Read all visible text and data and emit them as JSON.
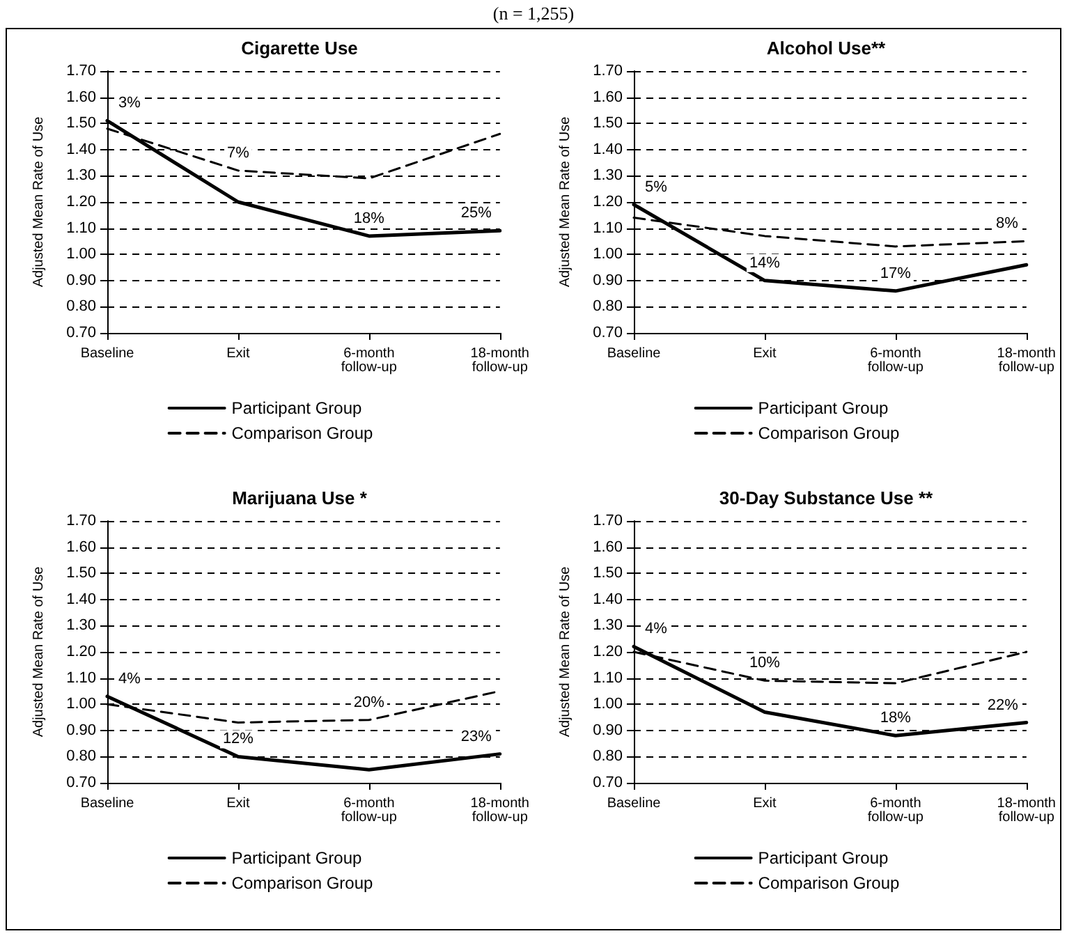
{
  "chart_data": [
    {
      "type": "line",
      "title": "Cigarette Use",
      "ylabel": "Adjusted Mean Rate of Use",
      "categories": [
        "Baseline",
        "Exit",
        "6-month\nfollow-up",
        "18-month\nfollow-up"
      ],
      "series": [
        {
          "name": "Participant Group",
          "color": "#000000",
          "line_style": "solid",
          "values": [
            1.51,
            1.2,
            1.07,
            1.09
          ]
        },
        {
          "name": "Comparison Group",
          "color": "#000000",
          "line_style": "dashed",
          "values": [
            1.48,
            1.32,
            1.29,
            1.46
          ]
        }
      ],
      "ylim": [
        0.7,
        1.7
      ],
      "yticks": [
        {
          "value": 0.7,
          "label": "0.70"
        },
        {
          "value": 0.8,
          "label": "0.80"
        },
        {
          "value": 0.9,
          "label": "0.90"
        },
        {
          "value": 1.0,
          "label": "1.00"
        },
        {
          "value": 1.1,
          "label": "1.10"
        },
        {
          "value": 1.2,
          "label": "1.20"
        },
        {
          "value": 1.3,
          "label": "1.30"
        },
        {
          "value": 1.4,
          "label": "1.40"
        },
        {
          "value": 1.5,
          "label": "1.50"
        },
        {
          "value": 1.6,
          "label": "1.60"
        },
        {
          "value": 1.7,
          "label": "1.70"
        }
      ],
      "grid": "y",
      "legend": "bottom",
      "marker": "none",
      "annotations": [
        "(n = 1,255)",
        {
          "text": "3%",
          "x": "Baseline",
          "y": 1.51
        },
        {
          "text": "7%",
          "x": "Exit",
          "y": 1.32
        },
        {
          "text": "18%",
          "x": "6-month\nfollow-up",
          "y": 1.07
        },
        {
          "text": "25%",
          "x": "18-month\nfollow-up",
          "y": 1.09
        }
      ]
    },
    {
      "type": "line",
      "title": "Alcohol Use**",
      "ylabel": "Adjusted Mean Rate of Use",
      "categories": [
        "Baseline",
        "Exit",
        "6-month\nfollow-up",
        "18-month\nfollow-up"
      ],
      "series": [
        {
          "name": "Participant Group",
          "color": "#000000",
          "line_style": "solid",
          "values": [
            1.19,
            0.9,
            0.86,
            0.96
          ]
        },
        {
          "name": "Comparison Group",
          "color": "#000000",
          "line_style": "dashed",
          "values": [
            1.14,
            1.07,
            1.03,
            1.05
          ]
        }
      ],
      "ylim": [
        0.7,
        1.7
      ],
      "yticks": [
        {
          "value": 0.7,
          "label": "0.70"
        },
        {
          "value": 0.8,
          "label": "0.80"
        },
        {
          "value": 0.9,
          "label": "0.90"
        },
        {
          "value": 1.0,
          "label": "1.00"
        },
        {
          "value": 1.1,
          "label": "1.10"
        },
        {
          "value": 1.2,
          "label": "1.20"
        },
        {
          "value": 1.3,
          "label": "1.30"
        },
        {
          "value": 1.4,
          "label": "1.40"
        },
        {
          "value": 1.5,
          "label": "1.50"
        },
        {
          "value": 1.6,
          "label": "1.60"
        },
        {
          "value": 1.7,
          "label": "1.70"
        }
      ],
      "grid": "y",
      "legend": "bottom",
      "marker": "none",
      "annotations": [
        {
          "text": "5%",
          "x": "Baseline",
          "y": 1.19
        },
        {
          "text": "14%",
          "x": "Exit",
          "y": 0.9
        },
        {
          "text": "17%",
          "x": "6-month\nfollow-up",
          "y": 0.86
        },
        {
          "text": "8%",
          "x": "18-month\nfollow-up",
          "y": 1.05
        }
      ]
    },
    {
      "type": "line",
      "title": "Marijuana Use *",
      "ylabel": "Adjusted Mean Rate of Use",
      "categories": [
        "Baseline",
        "Exit",
        "6-month\nfollow-up",
        "18-month\nfollow-up"
      ],
      "series": [
        {
          "name": "Participant Group",
          "color": "#000000",
          "line_style": "solid",
          "values": [
            1.03,
            0.8,
            0.75,
            0.81
          ]
        },
        {
          "name": "Comparison Group",
          "color": "#000000",
          "line_style": "dashed",
          "values": [
            1.0,
            0.93,
            0.94,
            1.05
          ]
        }
      ],
      "ylim": [
        0.7,
        1.7
      ],
      "yticks": [
        {
          "value": 0.7,
          "label": "0.70"
        },
        {
          "value": 0.8,
          "label": "0.80"
        },
        {
          "value": 0.9,
          "label": "0.90"
        },
        {
          "value": 1.0,
          "label": "1.00"
        },
        {
          "value": 1.1,
          "label": "1.10"
        },
        {
          "value": 1.2,
          "label": "1.20"
        },
        {
          "value": 1.3,
          "label": "1.30"
        },
        {
          "value": 1.4,
          "label": "1.40"
        },
        {
          "value": 1.5,
          "label": "1.50"
        },
        {
          "value": 1.6,
          "label": "1.60"
        },
        {
          "value": 1.7,
          "label": "1.70"
        }
      ],
      "grid": "y",
      "legend": "bottom",
      "marker": "none",
      "annotations": [
        {
          "text": "4%",
          "x": "Baseline",
          "y": 1.03
        },
        {
          "text": "12%",
          "x": "Exit",
          "y": 0.8
        },
        {
          "text": "20%",
          "x": "6-month\nfollow-up",
          "y": 0.94
        },
        {
          "text": "23%",
          "x": "18-month\nfollow-up",
          "y": 0.81
        }
      ]
    },
    {
      "type": "line",
      "title": "30-Day Substance Use **",
      "ylabel": "Adjusted Mean Rate of Use",
      "categories": [
        "Baseline",
        "Exit",
        "6-month\nfollow-up",
        "18-month\nfollow-up"
      ],
      "series": [
        {
          "name": "Participant Group",
          "color": "#000000",
          "line_style": "solid",
          "values": [
            1.22,
            0.97,
            0.88,
            0.93
          ]
        },
        {
          "name": "Comparison Group",
          "color": "#000000",
          "line_style": "dashed",
          "values": [
            1.2,
            1.09,
            1.08,
            1.2
          ]
        }
      ],
      "ylim": [
        0.7,
        1.7
      ],
      "yticks": [
        {
          "value": 0.7,
          "label": "0.70"
        },
        {
          "value": 0.8,
          "label": "0.80"
        },
        {
          "value": 0.9,
          "label": "0.90"
        },
        {
          "value": 1.0,
          "label": "1.00"
        },
        {
          "value": 1.1,
          "label": "1.10"
        },
        {
          "value": 1.2,
          "label": "1.20"
        },
        {
          "value": 1.3,
          "label": "1.30"
        },
        {
          "value": 1.4,
          "label": "1.40"
        },
        {
          "value": 1.5,
          "label": "1.50"
        },
        {
          "value": 1.6,
          "label": "1.60"
        },
        {
          "value": 1.7,
          "label": "1.70"
        }
      ],
      "grid": "y",
      "legend": "bottom",
      "marker": "none",
      "annotations": [
        {
          "text": "4%",
          "x": "Baseline",
          "y": 1.22
        },
        {
          "text": "10%",
          "x": "Exit",
          "y": 1.09
        },
        {
          "text": "18%",
          "x": "6-month\nfollow-up",
          "y": 0.88
        },
        {
          "text": "22%",
          "x": "18-month\nfollow-up",
          "y": 0.93
        }
      ]
    }
  ]
}
